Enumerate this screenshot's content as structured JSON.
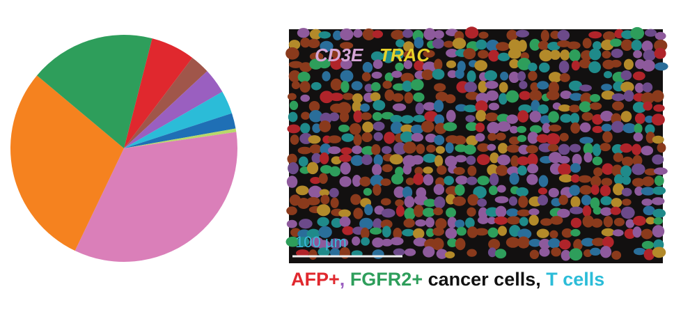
{
  "chart_data": {
    "type": "pie",
    "values": [
      6.3,
      2.8,
      3.6,
      3.3,
      2.2,
      0.5,
      34.4,
      29,
      17.9
    ],
    "colors": [
      "#e0282e",
      "#a0564a",
      "#9a5fc0",
      "#2bbcd8",
      "#1f6fb5",
      "#b8d86a",
      "#da7fb9",
      "#f5821f",
      "#2e9e5b"
    ]
  },
  "image": {
    "marker_1": "CD3E",
    "marker_2": "TRAC",
    "scale_bar": "100 µm"
  },
  "caption": [
    "AFP+",
    ",",
    "FGFR2+",
    "cancer cells,",
    "T cells"
  ]
}
